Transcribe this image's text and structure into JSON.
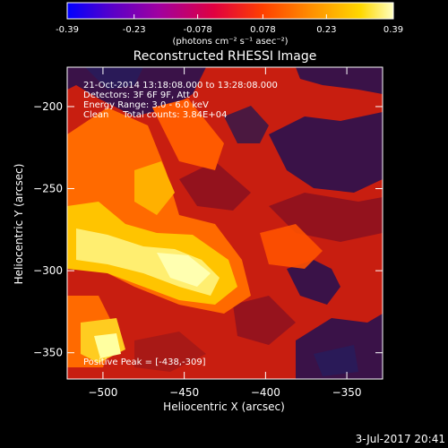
{
  "colorbar": {
    "tick_labels": [
      "-0.39",
      "-0.23",
      "-0.078",
      "0.078",
      "0.23",
      "0.39"
    ],
    "tick_values": [
      -0.39,
      -0.23,
      -0.078,
      0.078,
      0.23,
      0.39
    ],
    "range": [
      -0.39,
      0.39
    ],
    "units_label": "(photons cm⁻² s⁻¹ asec⁻²)",
    "colors": [
      "#0000ff",
      "#5a00c8",
      "#a000a0",
      "#e00040",
      "#ff4000",
      "#ff9000",
      "#ffd800",
      "#ffffc0"
    ]
  },
  "info_lines": [
    "21-Oct-2014 13:18:08.000 to 13:28:08.000",
    "Detectors: 3F 6F 9F, Att 0",
    "Energy Range: 3.0 - 6.0 keV",
    "Clean     Total counts: 3.84E+04"
  ],
  "peak_label": "Positive Peak = [-438,-309]",
  "footer_date": "3-Jul-2017 20:41",
  "chart_data": {
    "type": "heatmap",
    "title": "Reconstructed RHESSI Image",
    "xlabel": "Heliocentric X (arcsec)",
    "ylabel": "Heliocentric Y (arcsec)",
    "xlim": [
      -522,
      -328
    ],
    "ylim": [
      -366,
      -176
    ],
    "x_ticks": [
      -500,
      -450,
      -400,
      -350
    ],
    "x_tick_labels": [
      "−500",
      "−450",
      "−400",
      "−350"
    ],
    "y_ticks": [
      -350,
      -300,
      -250,
      -200
    ],
    "y_tick_labels": [
      "−350",
      "−300",
      "−250",
      "−200"
    ],
    "peak": [
      -438,
      -309
    ],
    "grid": false
  }
}
